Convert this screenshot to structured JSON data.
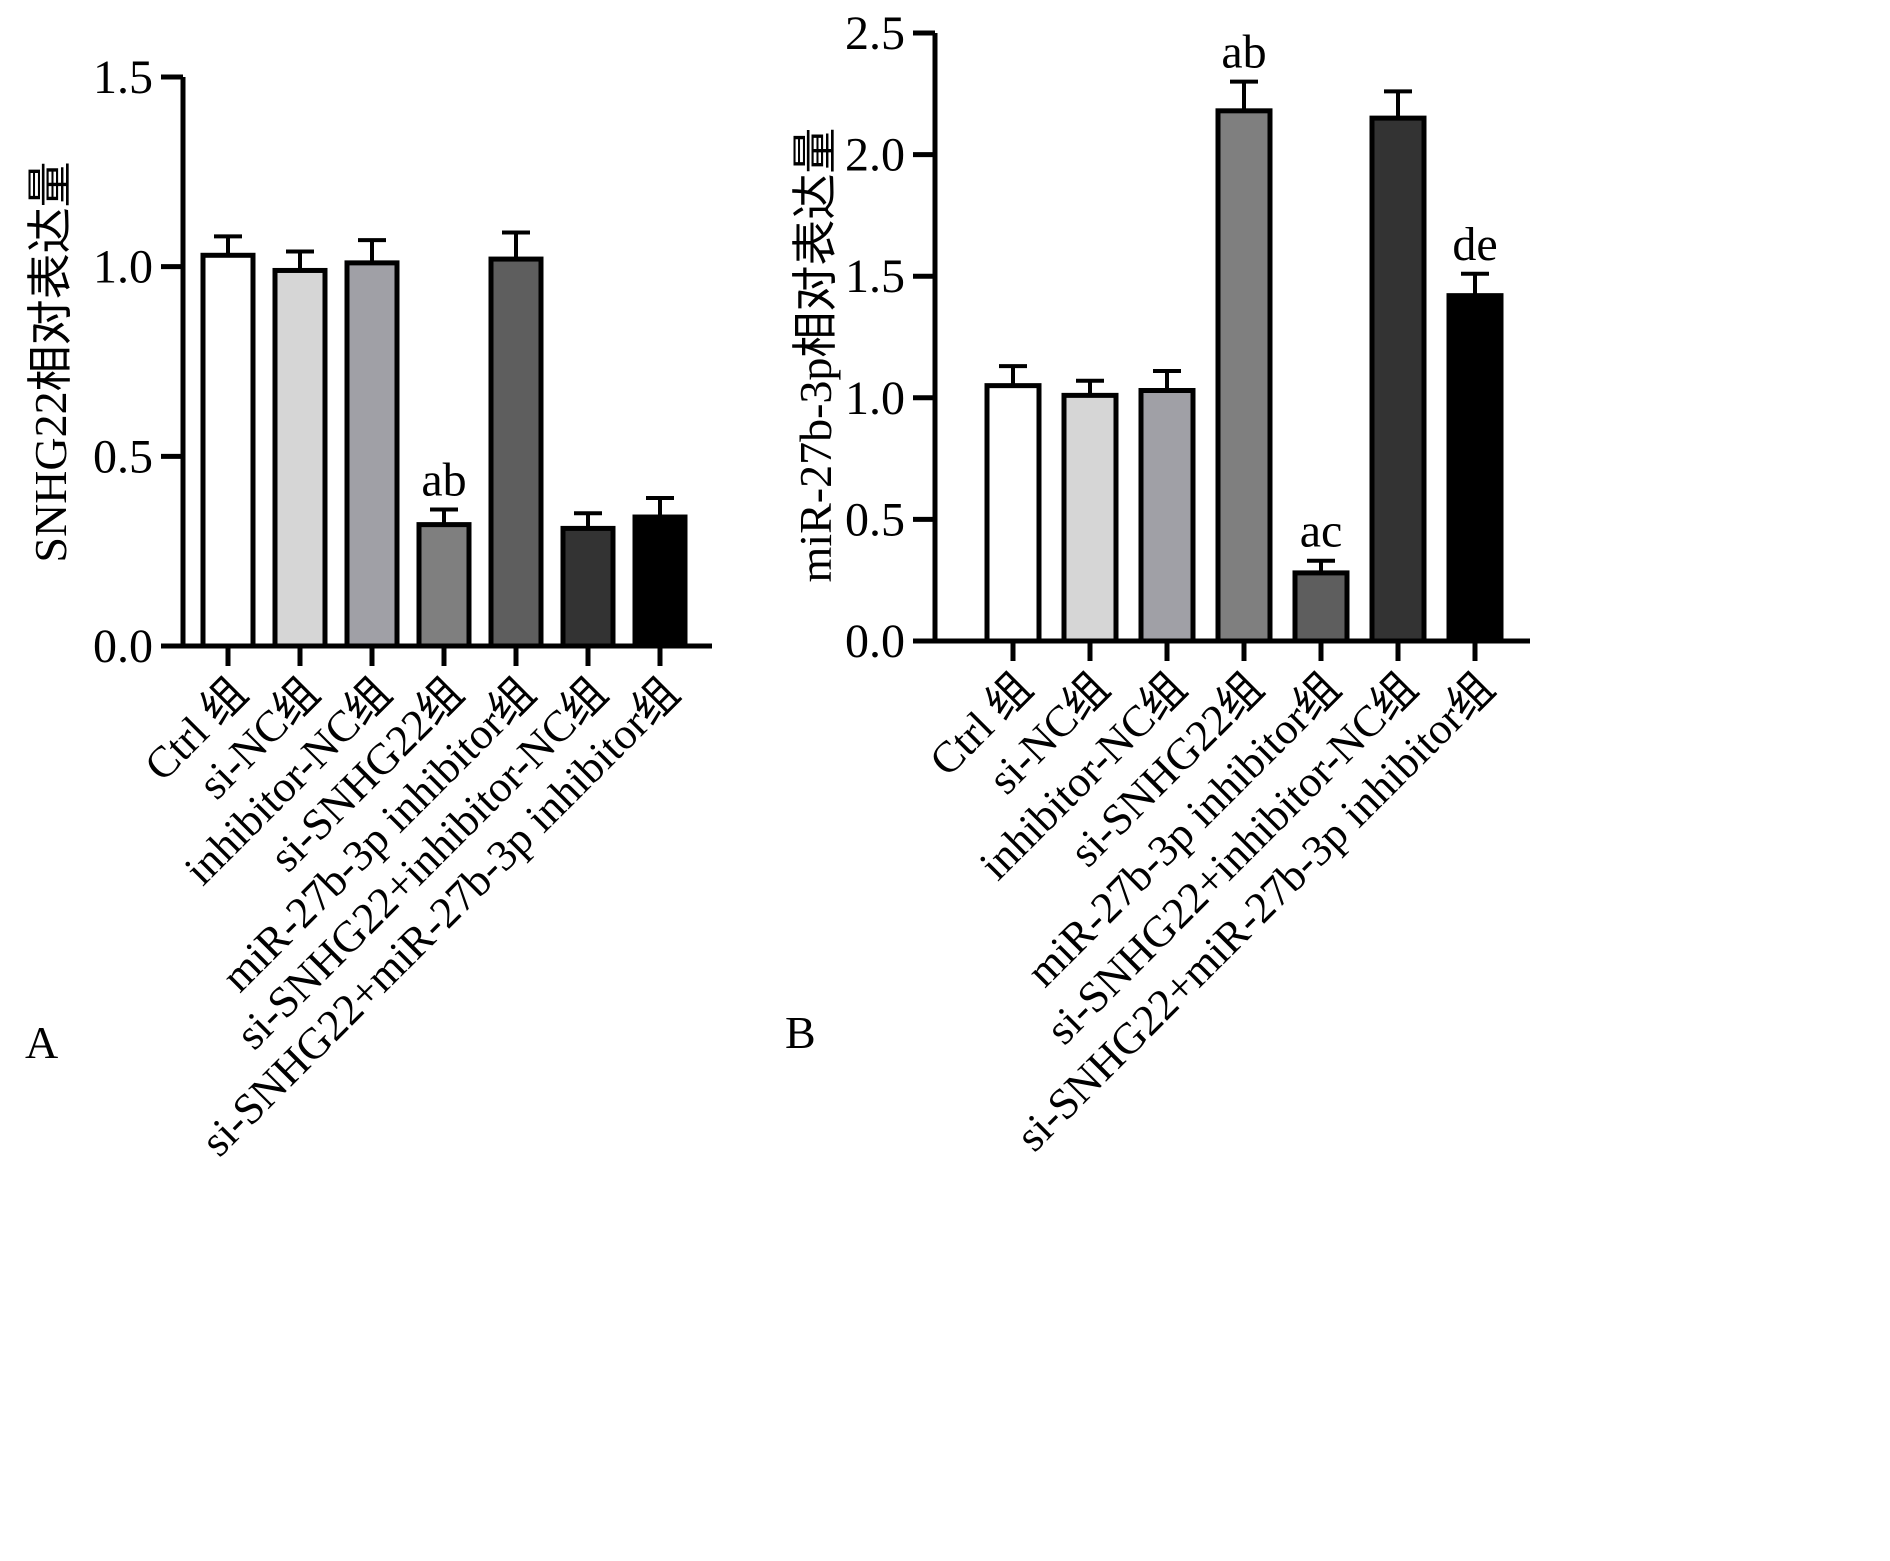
{
  "chart_data": [
    {
      "type": "bar",
      "panel_label": "A",
      "ylabel": "SNHG22相对表达量",
      "ylim": [
        0,
        1.5
      ],
      "yticks": [
        "0.0",
        "0.5",
        "1.0",
        "1.5"
      ],
      "categories": [
        "Ctrl 组",
        "si-NC组",
        "inhibitor-NC组",
        "si-SNHG22组",
        "miR-27b-3p inhibitor组",
        "si-SNHG22+inhibitor-NC组",
        "si-SNHG22+miR-27b-3p inhibitor组"
      ],
      "values": [
        1.03,
        0.99,
        1.01,
        0.32,
        1.02,
        0.31,
        0.34
      ],
      "errors": [
        0.05,
        0.05,
        0.06,
        0.04,
        0.07,
        0.04,
        0.05
      ],
      "annotations": [
        "",
        "",
        "",
        "ab",
        "",
        "",
        ""
      ],
      "colors": [
        "#ffffff",
        "#d6d6d6",
        "#a0a0a6",
        "#7f7f7f",
        "#5e5e5e",
        "#333333",
        "#000000"
      ]
    },
    {
      "type": "bar",
      "panel_label": "B",
      "ylabel": "miR-27b-3p相对表达量",
      "ylim": [
        0,
        2.5
      ],
      "yticks": [
        "0.0",
        "0.5",
        "1.0",
        "1.5",
        "2.0",
        "2.5"
      ],
      "categories": [
        "Ctrl 组",
        "si-NC组",
        "inhibitor-NC组",
        "si-SNHG22组",
        "miR-27b-3p inhibitor组",
        "si-SNHG22+inhibitor-NC组",
        "si-SNHG22+miR-27b-3p inhibitor组"
      ],
      "values": [
        1.05,
        1.01,
        1.03,
        2.18,
        0.28,
        2.15,
        1.42
      ],
      "errors": [
        0.08,
        0.06,
        0.08,
        0.12,
        0.05,
        0.11,
        0.09
      ],
      "annotations": [
        "",
        "",
        "",
        "ab",
        "ac",
        "",
        "de"
      ],
      "colors": [
        "#ffffff",
        "#d6d6d6",
        "#a0a0a6",
        "#7f7f7f",
        "#5e5e5e",
        "#333333",
        "#000000"
      ]
    }
  ]
}
